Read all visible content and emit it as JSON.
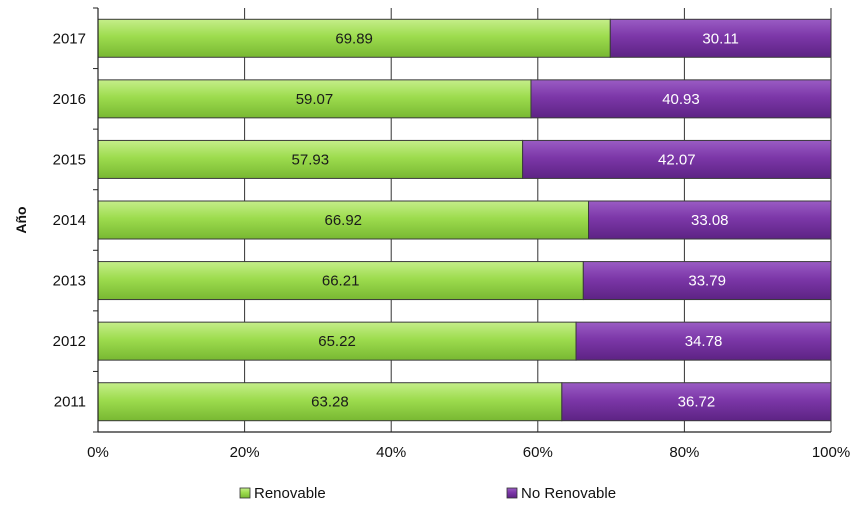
{
  "chart_data": {
    "type": "bar",
    "orientation": "horizontal",
    "stacked": true,
    "categories": [
      "2017",
      "2016",
      "2015",
      "2014",
      "2013",
      "2012",
      "2011"
    ],
    "series": [
      {
        "name": "Renovable",
        "color": "#99d94c",
        "values": [
          69.89,
          59.07,
          57.93,
          66.92,
          66.21,
          65.22,
          63.28
        ]
      },
      {
        "name": "No Renovable",
        "color": "#7c37a8",
        "values": [
          30.11,
          40.93,
          42.07,
          33.08,
          33.79,
          34.78,
          36.72
        ]
      }
    ],
    "xlim": [
      0,
      100
    ],
    "xticks": [
      "0%",
      "20%",
      "40%",
      "60%",
      "80%",
      "100%"
    ],
    "ylabel": "Año",
    "grid": "vertical",
    "legend_position": "bottom"
  }
}
